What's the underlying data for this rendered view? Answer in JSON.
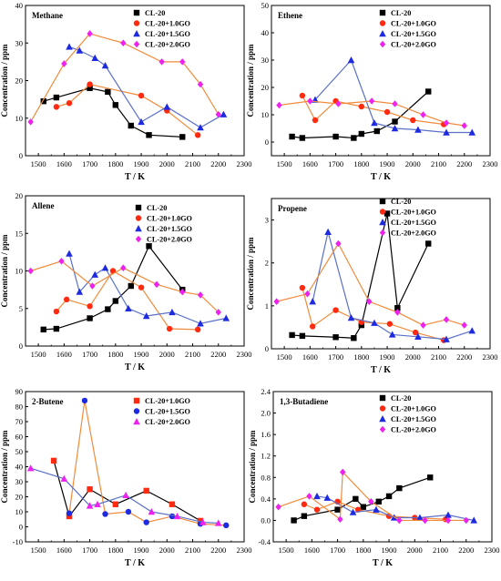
{
  "colors": {
    "CL-20": "#000000",
    "CL-20+1.0GO": "#ff2a10",
    "CL-20+1.5GO": "#1e2ae0",
    "CL-20+2.0GO": "#ee22ee",
    "line_pair": [
      "#000000",
      "#f08c3c",
      "#5a70c8",
      "#f08c3c"
    ],
    "line_butene": [
      "#000000",
      "#f08c3c",
      "#5a70c8"
    ],
    "line_butadiene": [
      "#000000",
      "#f08c3c",
      "#5a70c8",
      "#f08c3c"
    ]
  },
  "chart_data": [
    {
      "id": "methane",
      "type": "line",
      "title": "Methane",
      "xlabel": "T / K",
      "ylabel": "Concentration / ppm",
      "xlim": [
        1450,
        2300
      ],
      "ylim": [
        0,
        40
      ],
      "xticks": [
        1500,
        1600,
        1700,
        1800,
        1900,
        2000,
        2100,
        2200,
        2300
      ],
      "yticks": [
        0,
        10,
        20,
        30,
        40
      ],
      "legend_position": "top-right",
      "series": [
        {
          "name": "CL-20",
          "marker": "square",
          "x": [
            1520,
            1570,
            1700,
            1770,
            1800,
            1860,
            1930,
            2060
          ],
          "y": [
            14.5,
            15.5,
            18,
            17,
            13.5,
            8,
            5.5,
            5
          ]
        },
        {
          "name": "CL-20+1.0GO",
          "marker": "circle",
          "x": [
            1570,
            1620,
            1700,
            1900,
            2000,
            2120
          ],
          "y": [
            13,
            14,
            19,
            16,
            12,
            5.5
          ]
        },
        {
          "name": "CL-20+1.5GO",
          "marker": "triangle",
          "x": [
            1620,
            1660,
            1720,
            1760,
            1900,
            2000,
            2130,
            2220
          ],
          "y": [
            29,
            28,
            26,
            24,
            9,
            13,
            7.5,
            11
          ]
        },
        {
          "name": "CL-20+2.0GO",
          "marker": "diamond",
          "x": [
            1470,
            1600,
            1700,
            1830,
            1980,
            2060,
            2130,
            2200
          ],
          "y": [
            9,
            24.5,
            32.5,
            30,
            25,
            25,
            19,
            11
          ]
        }
      ]
    },
    {
      "id": "ethene",
      "type": "line",
      "title": "Ethene",
      "xlabel": "T / K",
      "ylabel": "Concentration / ppm",
      "xlim": [
        1450,
        2300
      ],
      "ylim": [
        -5,
        50
      ],
      "xticks": [
        1500,
        1600,
        1700,
        1800,
        1900,
        2000,
        2100,
        2200,
        2300
      ],
      "yticks": [
        0,
        10,
        20,
        30,
        40,
        50
      ],
      "legend_position": "top-right",
      "series": [
        {
          "name": "CL-20",
          "marker": "square",
          "x": [
            1530,
            1570,
            1700,
            1770,
            1800,
            1860,
            1930,
            2060
          ],
          "y": [
            2,
            1.5,
            2,
            1.5,
            3,
            4,
            7.5,
            18.5
          ]
        },
        {
          "name": "CL-20+1.0GO",
          "marker": "circle",
          "x": [
            1570,
            1620,
            1700,
            1800,
            1900,
            2000,
            2120
          ],
          "y": [
            17,
            8,
            15,
            13,
            11,
            8,
            6.5
          ]
        },
        {
          "name": "CL-20+1.5GO",
          "marker": "triangle",
          "x": [
            1620,
            1760,
            1850,
            1930,
            2020,
            2130,
            2230
          ],
          "y": [
            15.5,
            30,
            7,
            5,
            4.5,
            3.5,
            3.5
          ]
        },
        {
          "name": "CL-20+2.0GO",
          "marker": "diamond",
          "x": [
            1480,
            1600,
            1710,
            1840,
            1930,
            2040,
            2130,
            2200
          ],
          "y": [
            13.5,
            15,
            14,
            15,
            14,
            10,
            7,
            6
          ]
        }
      ]
    },
    {
      "id": "allene",
      "type": "line",
      "title": "Allene",
      "xlabel": "T / K",
      "ylabel": "Concentration / ppm",
      "xlim": [
        1450,
        2300
      ],
      "ylim": [
        0,
        20
      ],
      "xticks": [
        1500,
        1600,
        1700,
        1800,
        1900,
        2000,
        2100,
        2200,
        2300
      ],
      "yticks": [
        0,
        5,
        10,
        15,
        20
      ],
      "legend_position": "top-right",
      "series": [
        {
          "name": "CL-20",
          "marker": "square",
          "x": [
            1520,
            1570,
            1700,
            1770,
            1800,
            1860,
            1930,
            2060
          ],
          "y": [
            2.2,
            2.3,
            3.7,
            4.9,
            6,
            8,
            13.3,
            7.5
          ]
        },
        {
          "name": "CL-20+1.0GO",
          "marker": "circle",
          "x": [
            1570,
            1610,
            1700,
            1790,
            1900,
            2010,
            2120
          ],
          "y": [
            4.6,
            6.2,
            5.3,
            10,
            7.8,
            2.3,
            2.2
          ]
        },
        {
          "name": "CL-20+1.5GO",
          "marker": "triangle",
          "x": [
            1620,
            1660,
            1720,
            1760,
            1850,
            1920,
            2020,
            2130,
            2230
          ],
          "y": [
            12.3,
            7.2,
            9.5,
            10.4,
            5,
            4,
            4.5,
            3,
            3.7
          ]
        },
        {
          "name": "CL-20+2.0GO",
          "marker": "diamond",
          "x": [
            1470,
            1590,
            1710,
            1830,
            1960,
            2060,
            2130,
            2200
          ],
          "y": [
            10,
            11.3,
            8,
            10.4,
            8.2,
            7.2,
            6.8,
            4.5
          ]
        }
      ]
    },
    {
      "id": "propene",
      "type": "line",
      "title": "Propene",
      "xlabel": "T / K",
      "ylabel": "Concentration / ppm",
      "xlim": [
        1450,
        2300
      ],
      "ylim": [
        0,
        3.5
      ],
      "xticks": [
        1500,
        1600,
        1700,
        1800,
        1900,
        2000,
        2100,
        2200,
        2300
      ],
      "yticks": [
        0,
        1,
        2,
        3
      ],
      "legend_position": "top-right",
      "series": [
        {
          "name": "CL-20",
          "marker": "square",
          "x": [
            1530,
            1570,
            1700,
            1770,
            1800,
            1900,
            1940,
            2060
          ],
          "y": [
            0.32,
            0.3,
            0.27,
            0.25,
            0.55,
            3.15,
            0.95,
            2.45
          ]
        },
        {
          "name": "CL-20+1.0GO",
          "marker": "circle",
          "x": [
            1570,
            1610,
            1700,
            1800,
            1910,
            2010,
            2120
          ],
          "y": [
            1.42,
            0.52,
            0.9,
            0.62,
            0.58,
            0.38,
            0.2
          ]
        },
        {
          "name": "CL-20+1.5GO",
          "marker": "triangle",
          "x": [
            1610,
            1670,
            1760,
            1850,
            1920,
            2020,
            2130,
            2230
          ],
          "y": [
            1.1,
            2.72,
            0.72,
            0.6,
            0.33,
            0.28,
            0.22,
            0.42
          ]
        },
        {
          "name": "CL-20+2.0GO",
          "marker": "diamond",
          "x": [
            1470,
            1590,
            1710,
            1830,
            1940,
            2040,
            2130,
            2200
          ],
          "y": [
            1.1,
            1.28,
            2.45,
            1.1,
            0.85,
            0.55,
            0.68,
            0.55
          ]
        }
      ]
    },
    {
      "id": "butene",
      "type": "line",
      "title": "2-Butene",
      "xlabel": "T / K",
      "ylabel": "Concentration / ppm",
      "xlim": [
        1450,
        2300
      ],
      "ylim": [
        -10,
        90
      ],
      "xticks": [
        1500,
        1600,
        1700,
        1800,
        1900,
        2000,
        2100,
        2200,
        2300
      ],
      "yticks": [
        -10,
        0,
        10,
        20,
        30,
        40,
        50,
        60,
        70,
        80,
        90
      ],
      "legend_position": "top-right",
      "series": [
        {
          "name": "CL-20+1.0GO",
          "marker": "square",
          "x": [
            1560,
            1620,
            1700,
            1800,
            1920,
            2020,
            2130
          ],
          "y": [
            44,
            7,
            25,
            15,
            24,
            15,
            4
          ]
        },
        {
          "name": "CL-20+1.5GO",
          "marker": "circle",
          "x": [
            1620,
            1680,
            1760,
            1850,
            1920,
            2020,
            2130,
            2230
          ],
          "y": [
            9,
            84,
            8.5,
            10,
            3,
            7,
            2,
            1
          ]
        },
        {
          "name": "CL-20+2.0GO",
          "marker": "triangle",
          "x": [
            1470,
            1600,
            1700,
            1730,
            1840,
            1940,
            2040,
            2140,
            2200
          ],
          "y": [
            39,
            32,
            14,
            15,
            21,
            10,
            7,
            3,
            2.5
          ]
        }
      ]
    },
    {
      "id": "butadiene",
      "type": "line",
      "title": "1,3-Butadiene",
      "xlabel": "T / K",
      "ylabel": "Concentration / ppm",
      "xlim": [
        1450,
        2300
      ],
      "ylim": [
        -0.4,
        2.4
      ],
      "xticks": [
        1500,
        1600,
        1700,
        1800,
        1900,
        2000,
        2100,
        2200,
        2300
      ],
      "yticks": [
        -0.4,
        0.0,
        0.4,
        0.8,
        1.2,
        1.6,
        2.0,
        2.4
      ],
      "legend_position": "top-right",
      "series": [
        {
          "name": "CL-20",
          "marker": "square",
          "x": [
            1530,
            1570,
            1700,
            1770,
            1800,
            1860,
            1900,
            1940,
            2060
          ],
          "y": [
            0,
            0.08,
            0.2,
            0.4,
            0.25,
            0.35,
            0.45,
            0.6,
            0.8
          ]
        },
        {
          "name": "CL-20+1.0GO",
          "marker": "circle",
          "x": [
            1570,
            1620,
            1700,
            1780,
            1900,
            2000,
            2120
          ],
          "y": [
            0.3,
            0.2,
            0.35,
            0.2,
            0.08,
            0.05,
            0.02
          ]
        },
        {
          "name": "CL-20+1.5GO",
          "marker": "triangle",
          "x": [
            1620,
            1660,
            1760,
            1850,
            1920,
            2020,
            2130,
            2230
          ],
          "y": [
            0.45,
            0.42,
            0.15,
            0.2,
            0.05,
            0.05,
            0.1,
            0.0
          ]
        },
        {
          "name": "CL-20+2.0GO",
          "marker": "diamond",
          "x": [
            1470,
            1590,
            1710,
            1720,
            1830,
            1940,
            2040,
            2130,
            2200
          ],
          "y": [
            0.25,
            0.45,
            0.02,
            0.9,
            0.35,
            0.0,
            0.0,
            0.0,
            0.0
          ]
        }
      ]
    }
  ]
}
